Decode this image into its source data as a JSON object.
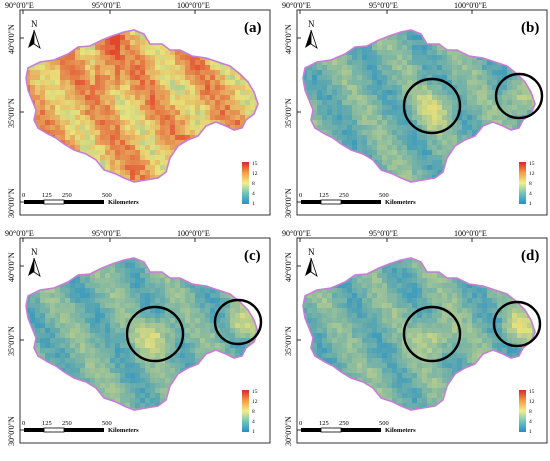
{
  "figure": {
    "lon_labels": [
      "90°0'0\"E",
      "95°0'0\"E",
      "100°0'0\"E"
    ],
    "lat_labels": [
      "40°0'0\"N",
      "35°0'0\"N",
      "30°0'0\"N"
    ],
    "north_label": "N",
    "scale_ticks": [
      "0",
      "125",
      "250",
      "500"
    ],
    "scale_unit": "Kilometers",
    "legend_ticks": [
      "15",
      "12",
      "8",
      "4",
      "1"
    ],
    "panels": [
      {
        "label": "(a)",
        "style": "warm",
        "circles": 0
      },
      {
        "label": "(b)",
        "style": "cool",
        "circles": 2
      },
      {
        "label": "(c)",
        "style": "cool",
        "circles": 2
      },
      {
        "label": "(d)",
        "style": "cool",
        "circles": 2
      }
    ],
    "colors": {
      "outline": "#c77dd6",
      "low": "#2a93c4",
      "mid": "#e9e27a",
      "high": "#e2462c"
    }
  }
}
